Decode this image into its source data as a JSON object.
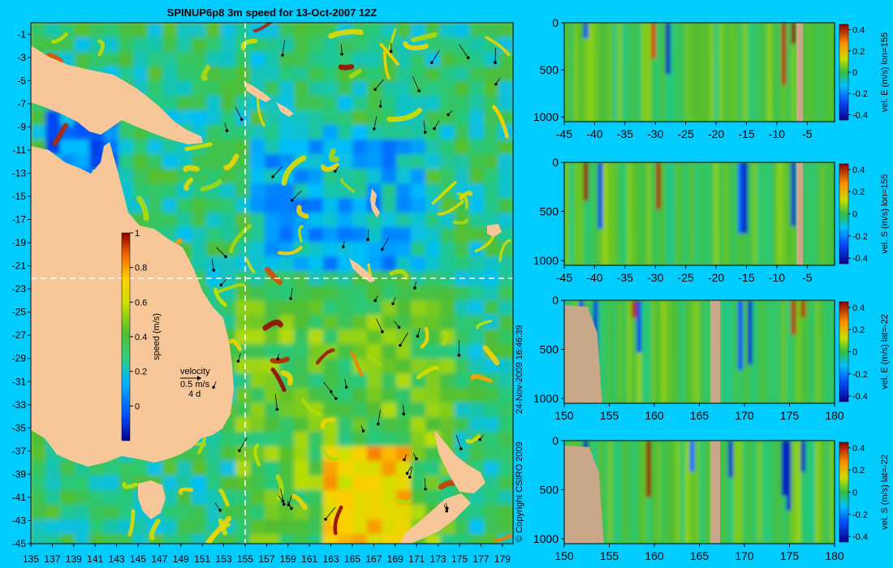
{
  "title": "SPINUP6p8 3m speed for 13-Oct-2007 12Z",
  "side_note": "24-Nov-2009 16:46:39",
  "copyright": "© Copyright CSIRO 2009",
  "colors": {
    "background": "#00ccff",
    "land": "#f7c79a",
    "subsurface_land": "#c8a888",
    "section_marker": "#ffffff"
  },
  "chart_data": [
    {
      "type": "heatmap",
      "name": "map",
      "title": "SPINUP6p8 3m speed for 13-Oct-2007 12Z",
      "x_ticks": [
        "135",
        "137",
        "139",
        "141",
        "143",
        "145",
        "147",
        "149",
        "151",
        "153",
        "155",
        "157",
        "159",
        "161",
        "163",
        "165",
        "167",
        "169",
        "171",
        "173",
        "175",
        "177",
        "179"
      ],
      "y_ticks": [
        "-1",
        "-3",
        "-5",
        "-7",
        "-9",
        "-11",
        "-13",
        "-15",
        "-17",
        "-19",
        "-21",
        "-23",
        "-25",
        "-27",
        "-29",
        "-31",
        "-33",
        "-35",
        "-37",
        "-39",
        "-41",
        "-43",
        "-45"
      ],
      "xlim": [
        135,
        180
      ],
      "ylim": [
        -45,
        0
      ],
      "section_lon": 155,
      "section_lat": -22,
      "colorbar": {
        "label": "speed (m/s)",
        "ticks": [
          "0",
          "0.2",
          "0.4",
          "0.6",
          "0.8",
          "1"
        ],
        "range": [
          -0.2,
          1
        ]
      },
      "legend": {
        "title": "velocity",
        "scale": "0.5 m/s",
        "duration": "4 d"
      }
    },
    {
      "type": "heatmap",
      "name": "section-1",
      "ylabel": "vel. E (m/s) lon=155",
      "x_ticks": [
        "-45",
        "-40",
        "-35",
        "-30",
        "-25",
        "-20",
        "-15",
        "-10",
        "-5"
      ],
      "y_ticks": [
        "0",
        "500",
        "1000"
      ],
      "xlim": [
        -45,
        -0.5
      ],
      "ylim": [
        1050,
        0
      ],
      "colorbar_ticks": [
        "0.4",
        "0.2",
        "0",
        "-0.2",
        "-0.4"
      ],
      "range": [
        -0.45,
        0.45
      ]
    },
    {
      "type": "heatmap",
      "name": "section-2",
      "ylabel": "vel. S (m/s) lon=155",
      "x_ticks": [
        "-45",
        "-40",
        "-35",
        "-30",
        "-25",
        "-20",
        "-15",
        "-10",
        "-5"
      ],
      "y_ticks": [
        "0",
        "500",
        "1000"
      ],
      "xlim": [
        -45,
        -0.5
      ],
      "ylim": [
        1050,
        0
      ],
      "colorbar_ticks": [
        "0.4",
        "0.2",
        "0",
        "-0.2",
        "-0.4"
      ],
      "range": [
        -0.45,
        0.45
      ]
    },
    {
      "type": "heatmap",
      "name": "section-3",
      "ylabel": "vel. E (m/s) lat=-22",
      "x_ticks": [
        "150",
        "155",
        "160",
        "165",
        "170",
        "175",
        "180"
      ],
      "y_ticks": [
        "0",
        "500",
        "1000"
      ],
      "xlim": [
        150,
        180
      ],
      "ylim": [
        1050,
        0
      ],
      "colorbar_ticks": [
        "0.4",
        "0.2",
        "0",
        "-0.2",
        "-0.4"
      ],
      "range": [
        -0.45,
        0.45
      ]
    },
    {
      "type": "heatmap",
      "name": "section-4",
      "ylabel": "vel. S (m/s) lat=-22",
      "x_ticks": [
        "150",
        "155",
        "160",
        "165",
        "170",
        "175",
        "180"
      ],
      "y_ticks": [
        "0",
        "500",
        "1000"
      ],
      "xlim": [
        150,
        180
      ],
      "ylim": [
        1050,
        0
      ],
      "colorbar_ticks": [
        "0.4",
        "0.2",
        "0",
        "-0.2",
        "-0.4"
      ],
      "range": [
        -0.45,
        0.45
      ]
    }
  ]
}
